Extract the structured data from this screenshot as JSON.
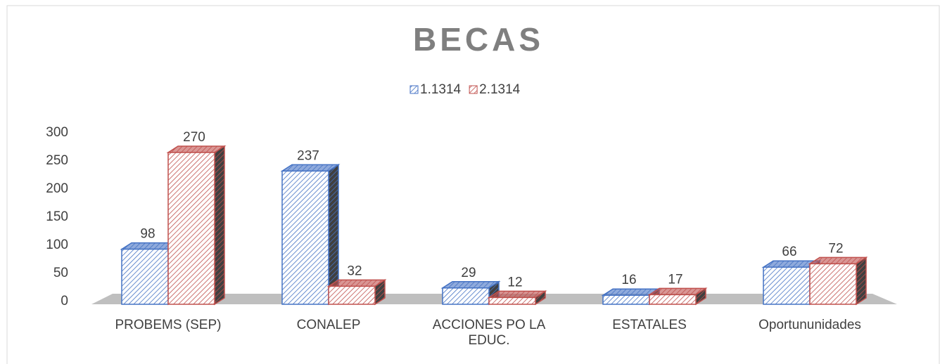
{
  "chart_data": {
    "type": "bar3d",
    "title": "BECAS",
    "categories": [
      "PROBEMS (SEP)",
      "CONALEP",
      "ACCIONES PO LA EDUC.",
      "ESTATALES",
      "Oportununidades"
    ],
    "series": [
      {
        "name": "1.1314",
        "color": "#4472c4",
        "values": [
          98,
          237,
          29,
          16,
          66
        ]
      },
      {
        "name": "2.1314",
        "color": "#c0504d",
        "values": [
          270,
          32,
          12,
          17,
          72
        ]
      }
    ],
    "ylim": [
      0,
      300
    ],
    "yticks": [
      0,
      50,
      100,
      150,
      200,
      250,
      300
    ],
    "legend": "top"
  }
}
